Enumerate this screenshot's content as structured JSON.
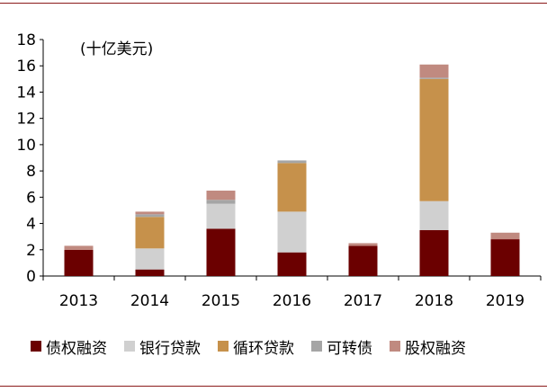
{
  "chart_data": {
    "type": "bar",
    "stacked": true,
    "unit_label": "(十亿美元)",
    "categories": [
      "2013",
      "2014",
      "2015",
      "2016",
      "2017",
      "2018",
      "2019"
    ],
    "ylim": [
      0,
      18
    ],
    "yticks": [
      "0",
      "2",
      "4",
      "6",
      "8",
      "10",
      "12",
      "14",
      "16",
      "18"
    ],
    "series": [
      {
        "name": "债权融资",
        "color": "#6b0000",
        "values": [
          2.0,
          0.5,
          3.6,
          1.8,
          2.3,
          3.5,
          2.8
        ]
      },
      {
        "name": "银行贷款",
        "color": "#d0d0d0",
        "values": [
          0.0,
          1.6,
          1.9,
          3.1,
          0.0,
          2.2,
          0.0
        ]
      },
      {
        "name": "循环贷款",
        "color": "#c6914b",
        "values": [
          0.0,
          2.4,
          0.0,
          3.7,
          0.0,
          9.3,
          0.0
        ]
      },
      {
        "name": "可转债",
        "color": "#a5a5a5",
        "values": [
          0.0,
          0.2,
          0.3,
          0.2,
          0.0,
          0.1,
          0.0
        ]
      },
      {
        "name": "股权融资",
        "color": "#c08a80",
        "values": [
          0.3,
          0.2,
          0.7,
          0.0,
          0.2,
          1.0,
          0.5
        ]
      }
    ],
    "grid": false,
    "legend_position": "bottom"
  }
}
